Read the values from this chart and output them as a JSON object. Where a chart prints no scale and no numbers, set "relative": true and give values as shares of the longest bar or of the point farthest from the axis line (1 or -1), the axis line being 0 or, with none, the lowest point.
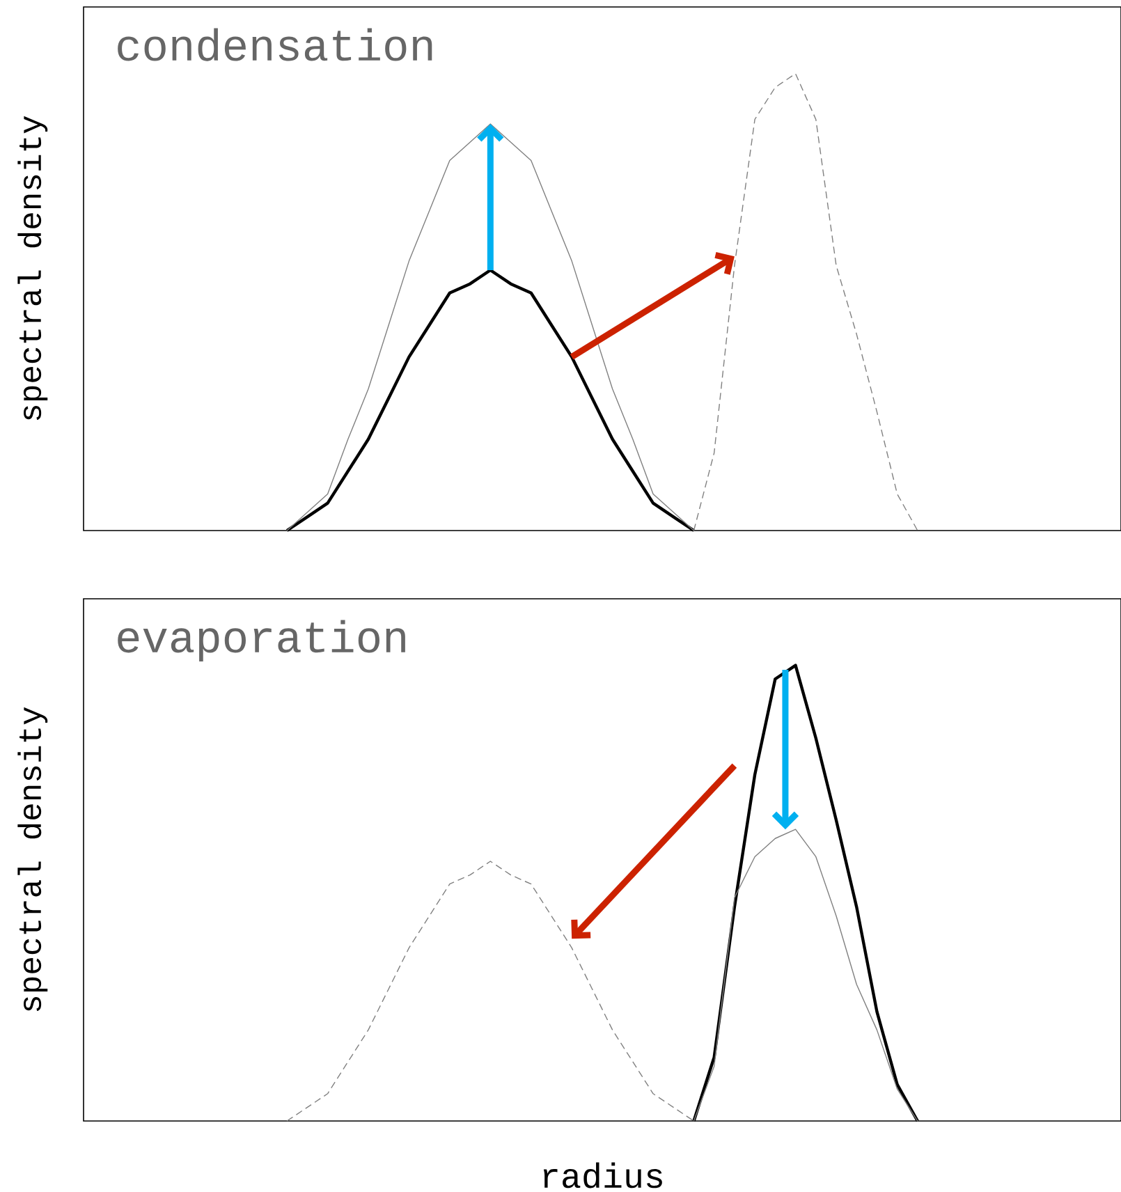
{
  "chart_data": [
    {
      "type": "line",
      "title": "condensation",
      "ylabel": "spectral density",
      "categories": [
        null,
        null,
        null,
        null,
        null,
        null,
        null,
        null,
        null,
        null,
        null,
        null,
        null,
        null,
        null,
        null,
        null,
        null,
        null,
        null,
        null,
        null,
        null,
        null,
        null,
        null,
        null,
        null,
        null,
        null,
        null,
        null,
        null,
        null,
        null,
        null,
        null,
        null,
        null,
        null,
        null,
        null,
        null,
        null,
        null,
        null,
        null,
        null,
        null,
        null,
        null,
        null
      ],
      "relative": true,
      "marker": "none",
      "series": [
        {
          "color": "#000000",
          "line_style": "solid",
          "values": [
            null,
            null,
            null,
            null,
            null,
            null,
            null,
            null,
            null,
            null,
            0,
            0.03,
            0.06,
            0.13,
            0.2,
            0.29,
            0.38,
            0.45,
            0.52,
            0.54,
            0.57,
            0.54,
            0.52,
            0.45,
            0.38,
            0.29,
            0.2,
            0.13,
            0.06,
            0.03,
            0,
            null,
            null,
            null,
            null,
            null,
            null,
            null,
            null,
            null,
            null,
            null,
            null,
            null,
            null,
            null,
            null,
            null,
            null,
            null,
            null,
            null
          ]
        },
        {
          "color": "#808080",
          "line_style": "solid",
          "values": [
            null,
            null,
            null,
            null,
            null,
            null,
            null,
            null,
            null,
            null,
            0,
            0.04,
            0.08,
            0.2,
            0.31,
            0.45,
            0.59,
            0.7,
            0.81,
            0.85,
            0.89,
            0.85,
            0.81,
            0.7,
            0.59,
            0.45,
            0.31,
            0.2,
            0.08,
            0.04,
            0,
            null,
            null,
            null,
            null,
            null,
            null,
            null,
            null,
            null,
            null,
            null,
            null,
            null,
            null,
            null,
            null,
            null,
            null,
            null,
            null,
            null
          ]
        },
        {
          "color": "#808080",
          "line_style": "dashed",
          "values": [
            null,
            null,
            null,
            null,
            null,
            null,
            null,
            null,
            null,
            null,
            null,
            null,
            null,
            null,
            null,
            null,
            null,
            null,
            null,
            null,
            null,
            null,
            null,
            null,
            null,
            null,
            null,
            null,
            null,
            null,
            0,
            0.17,
            0.58,
            0.9,
            0.97,
            1,
            0.9,
            0.58,
            0.43,
            0.26,
            0.08,
            0,
            null,
            null,
            null,
            null,
            null,
            null,
            null,
            null,
            null,
            null
          ]
        }
      ]
    },
    {
      "type": "line",
      "title": "evaporation",
      "ylabel": "spectral density",
      "xlabel": "radius",
      "categories": [
        null,
        null,
        null,
        null,
        null,
        null,
        null,
        null,
        null,
        null,
        null,
        null,
        null,
        null,
        null,
        null,
        null,
        null,
        null,
        null,
        null,
        null,
        null,
        null,
        null,
        null,
        null,
        null,
        null,
        null,
        null,
        null,
        null,
        null,
        null,
        null,
        null,
        null,
        null,
        null,
        null,
        null,
        null,
        null,
        null,
        null,
        null,
        null,
        null,
        null,
        null,
        null
      ],
      "relative": true,
      "marker": "none",
      "series": [
        {
          "color": "#000000",
          "line_style": "solid",
          "values": [
            null,
            null,
            null,
            null,
            null,
            null,
            null,
            null,
            null,
            null,
            null,
            null,
            null,
            null,
            null,
            null,
            null,
            null,
            null,
            null,
            null,
            null,
            null,
            null,
            null,
            null,
            null,
            null,
            null,
            null,
            0,
            0.14,
            0.47,
            0.76,
            0.97,
            1,
            0.84,
            0.66,
            0.47,
            0.24,
            0.08,
            0,
            null,
            null,
            null,
            null,
            null,
            null,
            null,
            null,
            null,
            null
          ]
        },
        {
          "color": "#808080",
          "line_style": "solid",
          "values": [
            null,
            null,
            null,
            null,
            null,
            null,
            null,
            null,
            null,
            null,
            null,
            null,
            null,
            null,
            null,
            null,
            null,
            null,
            null,
            null,
            null,
            null,
            null,
            null,
            null,
            null,
            null,
            null,
            null,
            null,
            0,
            0.12,
            0.49,
            0.58,
            0.62,
            0.64,
            0.58,
            0.45,
            0.3,
            0.2,
            0.07,
            0,
            null,
            null,
            null,
            null,
            null,
            null,
            null,
            null,
            null,
            null
          ]
        },
        {
          "color": "#808080",
          "line_style": "dashed",
          "values": [
            null,
            null,
            null,
            null,
            null,
            null,
            null,
            null,
            null,
            null,
            0,
            0.03,
            0.06,
            0.13,
            0.2,
            0.29,
            0.38,
            0.45,
            0.52,
            0.54,
            0.57,
            0.54,
            0.52,
            0.45,
            0.38,
            0.29,
            0.2,
            0.13,
            0.06,
            0.03,
            0,
            null,
            null,
            null,
            null,
            null,
            null,
            null,
            null,
            null,
            null,
            null,
            null,
            null,
            null,
            null,
            null,
            null,
            null,
            null,
            null,
            null
          ]
        }
      ]
    }
  ]
}
